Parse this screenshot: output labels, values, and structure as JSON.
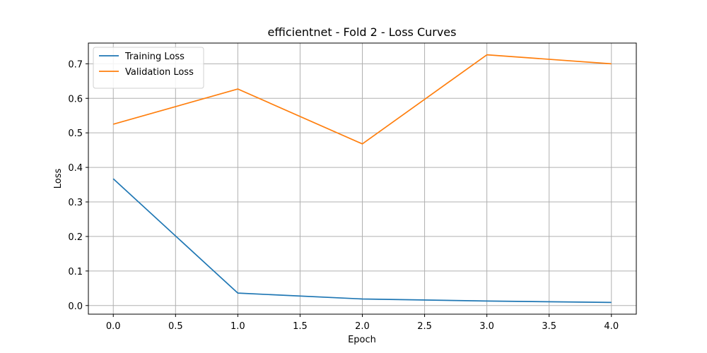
{
  "chart_data": {
    "type": "line",
    "title": "efficientnet - Fold 2 - Loss Curves",
    "xlabel": "Epoch",
    "ylabel": "Loss",
    "x": [
      0,
      1,
      2,
      3,
      4
    ],
    "xlim": [
      -0.2,
      4.2
    ],
    "ylim": [
      -0.025,
      0.76
    ],
    "xticks": [
      0.0,
      0.5,
      1.0,
      1.5,
      2.0,
      2.5,
      3.0,
      3.5,
      4.0
    ],
    "xtick_labels": [
      "0.0",
      "0.5",
      "1.0",
      "1.5",
      "2.0",
      "2.5",
      "3.0",
      "3.5",
      "4.0"
    ],
    "yticks": [
      0.0,
      0.1,
      0.2,
      0.3,
      0.4,
      0.5,
      0.6,
      0.7
    ],
    "ytick_labels": [
      "0.0",
      "0.1",
      "0.2",
      "0.3",
      "0.4",
      "0.5",
      "0.6",
      "0.7"
    ],
    "grid": true,
    "legend_position": "top-left",
    "series": [
      {
        "name": "Training Loss",
        "color": "#1f77b4",
        "values": [
          0.367,
          0.036,
          0.019,
          0.013,
          0.009
        ]
      },
      {
        "name": "Validation Loss",
        "color": "#ff7f0e",
        "values": [
          0.525,
          0.627,
          0.468,
          0.726,
          0.7
        ]
      }
    ]
  }
}
